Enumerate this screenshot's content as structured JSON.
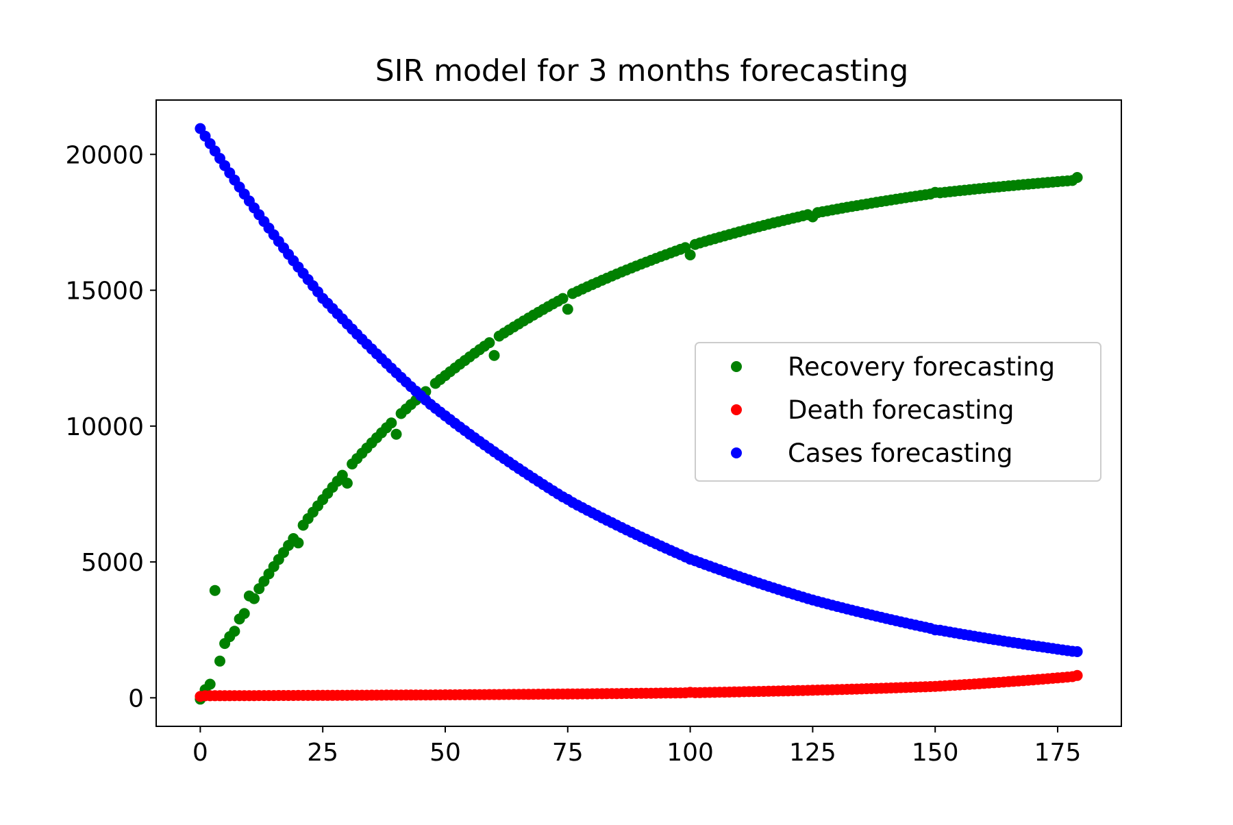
{
  "chart_data": {
    "type": "scatter",
    "title": "SIR model for 3 months forecasting",
    "xlabel": "",
    "ylabel": "",
    "xlim": [
      -9,
      188
    ],
    "ylim": [
      -1050,
      22000
    ],
    "xticks": [
      0,
      25,
      50,
      75,
      100,
      125,
      150,
      175
    ],
    "xtick_labels": [
      "0",
      "25",
      "50",
      "75",
      "100",
      "125",
      "150",
      "175"
    ],
    "yticks": [
      0,
      5000,
      10000,
      15000,
      20000
    ],
    "ytick_labels": [
      "0",
      "5000",
      "10000",
      "15000",
      "20000"
    ],
    "grid": false,
    "legend_position": "center-right",
    "x_range": {
      "start": 0,
      "end": 179,
      "step": 1
    },
    "series": [
      {
        "name": "Recovery forecasting",
        "color": "#008000",
        "model": {
          "kind": "saturating",
          "base": 0,
          "asymptote": 19600,
          "rate": 0.0195
        },
        "points": [
          {
            "x": 0,
            "y": -50
          },
          {
            "x": 1,
            "y": 300
          },
          {
            "x": 2,
            "y": 500
          },
          {
            "x": 3,
            "y": 3950
          },
          {
            "x": 4,
            "y": 1350
          },
          {
            "x": 5,
            "y": 2000
          },
          {
            "x": 6,
            "y": 2250
          },
          {
            "x": 7,
            "y": 2450
          },
          {
            "x": 8,
            "y": 2900
          },
          {
            "x": 9,
            "y": 3100
          },
          {
            "x": 10,
            "y": 3750
          },
          {
            "x": 11,
            "y": 3650
          },
          {
            "x": 20,
            "y": 5700
          },
          {
            "x": 30,
            "y": 7900
          },
          {
            "x": 40,
            "y": 9700
          },
          {
            "x": 47,
            "y": 10800
          },
          {
            "x": 60,
            "y": 12600
          },
          {
            "x": 75,
            "y": 14300
          },
          {
            "x": 100,
            "y": 16300
          },
          {
            "x": 125,
            "y": 17700
          },
          {
            "x": 150,
            "y": 18600
          },
          {
            "x": 179,
            "y": 19150
          }
        ]
      },
      {
        "name": "Death forecasting",
        "color": "#ff0000",
        "model": {
          "kind": "exponential",
          "base": 80,
          "scale": 8,
          "rate": 0.025
        },
        "points": [
          {
            "x": 0,
            "y": 50
          },
          {
            "x": 50,
            "y": 110
          },
          {
            "x": 100,
            "y": 200
          },
          {
            "x": 150,
            "y": 420
          },
          {
            "x": 179,
            "y": 820
          }
        ]
      },
      {
        "name": "Cases forecasting",
        "color": "#0000ff",
        "model": {
          "kind": "exponential",
          "base": 0,
          "scale": 20950,
          "rate": -0.0141
        },
        "points": [
          {
            "x": 0,
            "y": 20950
          },
          {
            "x": 25,
            "y": 14700
          },
          {
            "x": 47,
            "y": 10800
          },
          {
            "x": 75,
            "y": 7300
          },
          {
            "x": 100,
            "y": 5100
          },
          {
            "x": 125,
            "y": 3600
          },
          {
            "x": 150,
            "y": 2500
          },
          {
            "x": 179,
            "y": 1700
          }
        ]
      }
    ]
  }
}
